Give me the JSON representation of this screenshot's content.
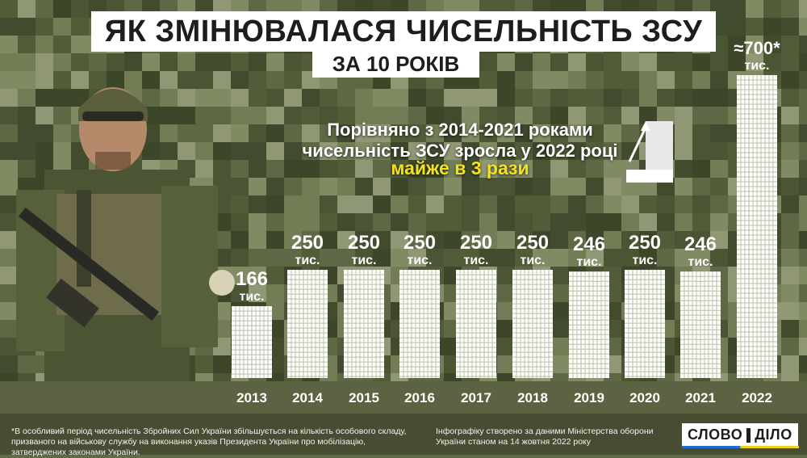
{
  "title": "ЯК ЗМІНЮВАЛАСЯ ЧИСЕЛЬНІСТЬ ЗСУ",
  "subtitle": "ЗА 10 РОКІВ",
  "note": {
    "line1": "Порівняно з 2014-2021 роками",
    "line2": "чисельність ЗСУ зросла у 2022 році",
    "line3": "майже в 3 рази"
  },
  "chart_data": {
    "type": "bar",
    "categories": [
      "2013",
      "2014",
      "2015",
      "2016",
      "2017",
      "2018",
      "2019",
      "2020",
      "2021",
      "2022"
    ],
    "values": [
      166,
      250,
      250,
      250,
      250,
      250,
      246,
      250,
      246,
      700
    ],
    "value_labels": [
      "166",
      "250",
      "250",
      "250",
      "250",
      "250",
      "246",
      "250",
      "246",
      "≈700*"
    ],
    "unit_label": "тис.",
    "ylim": [
      0,
      700
    ],
    "grid": false,
    "bar_color": "#ffffff"
  },
  "footnote_left": "*В особливий період чисельність Збройних Сил України збільшується на кількість особового складу, призваного на військову службу на виконання указів Президента України про мобілізацію, затверджених законами України.",
  "footnote_right": "Інфографіку створено за даними Міністерства оборони України станом на 14 жовтня 2022 року",
  "logo": {
    "left": "СЛОВО",
    "right": "ДІЛО"
  },
  "colors": {
    "yellow": "#f6e21b",
    "background": "#5f6b45",
    "flag_blue": "#1f6fd0",
    "flag_yellow": "#f3d21a"
  }
}
